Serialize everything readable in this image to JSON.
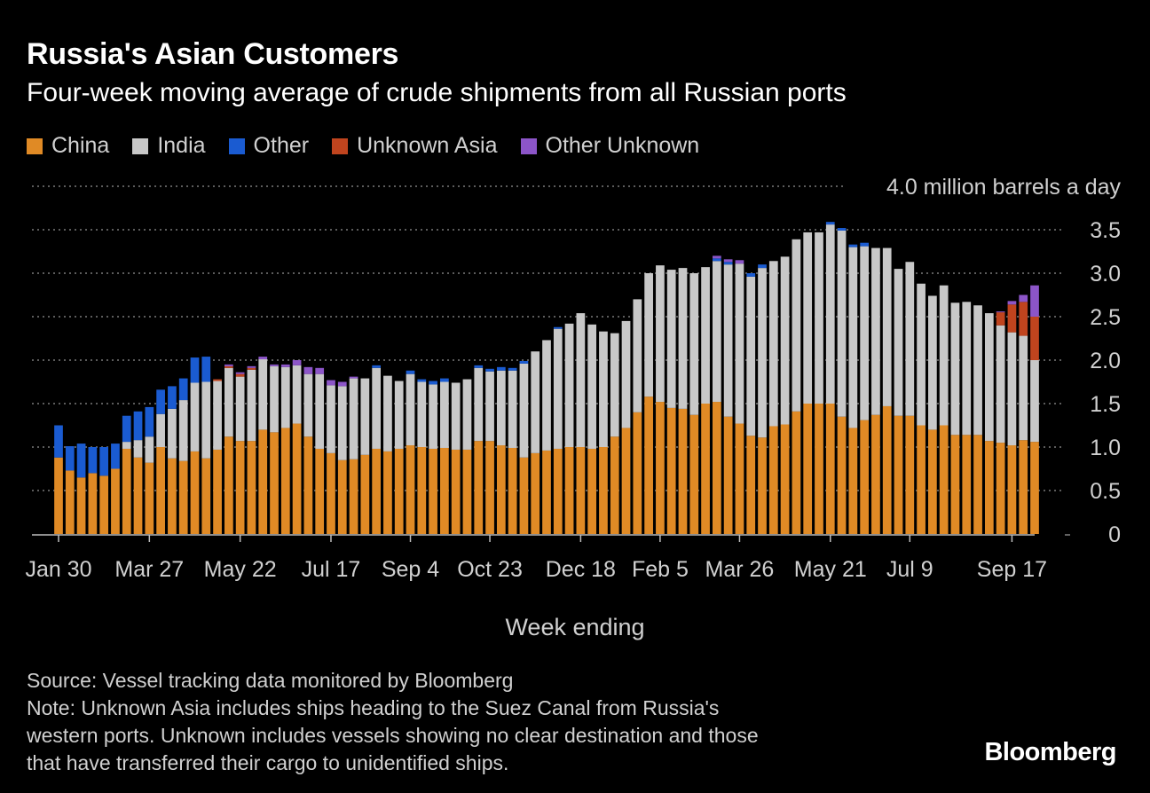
{
  "title": "Russia's Asian Customers",
  "subtitle": "Four-week moving average of crude shipments from all Russian ports",
  "legend": [
    {
      "label": "China",
      "color": "#e08a25"
    },
    {
      "label": "India",
      "color": "#c8c8c8"
    },
    {
      "label": "Other",
      "color": "#1a5bd1"
    },
    {
      "label": "Unknown Asia",
      "color": "#c0441e"
    },
    {
      "label": "Other Unknown",
      "color": "#8c55c8"
    }
  ],
  "source_line1": "Source: Vessel tracking data monitored by Bloomberg",
  "note_lines": [
    "Note: Unknown Asia includes ships heading to the Suez Canal from Russia's",
    "western ports. Unknown includes vessels showing no clear destination and those",
    "that have transferred their cargo to unidentified ships."
  ],
  "logo": "Bloomberg",
  "chart_data": {
    "type": "bar",
    "stacked": true,
    "title": "Russia's Asian Customers",
    "subtitle": "Four-week moving average of crude shipments from all Russian ports",
    "xlabel": "Week ending",
    "ylabel": "million barrels a day",
    "ylim": [
      0,
      4.0
    ],
    "yticks": [
      0,
      0.5,
      1.0,
      1.5,
      2.0,
      2.5,
      3.0,
      3.5,
      4.0
    ],
    "ytick_labels": [
      "0",
      "0.5",
      "1.0",
      "1.5",
      "2.0",
      "2.5",
      "3.0",
      "3.5",
      "4.0"
    ],
    "top_tick_suffix": "million barrels a day",
    "xtick_labels": [
      "Jan 30",
      "Mar 27",
      "May 22",
      "Jul 17",
      "Sep 4",
      "Oct 23",
      "Dec 18",
      "Feb 5",
      "Mar 26",
      "May 21",
      "Jul 9",
      "Sep 17"
    ],
    "xtick_indices": [
      0,
      8,
      16,
      24,
      31,
      38,
      46,
      53,
      60,
      68,
      75,
      84
    ],
    "series": [
      {
        "name": "China",
        "color": "#e08a25",
        "values": [
          0.88,
          0.73,
          0.65,
          0.7,
          0.67,
          0.75,
          0.98,
          0.88,
          0.82,
          1.0,
          0.87,
          0.84,
          0.95,
          0.87,
          0.97,
          1.12,
          1.07,
          1.07,
          1.2,
          1.17,
          1.22,
          1.27,
          1.12,
          0.98,
          0.93,
          0.85,
          0.86,
          0.91,
          0.98,
          0.95,
          0.98,
          1.02,
          1.0,
          0.98,
          0.99,
          0.97,
          0.97,
          1.07,
          1.07,
          1.02,
          0.99,
          0.88,
          0.93,
          0.96,
          0.98,
          1.0,
          1.0,
          0.98,
          1.0,
          1.12,
          1.22,
          1.4,
          1.58,
          1.52,
          1.45,
          1.44,
          1.37,
          1.5,
          1.52,
          1.35,
          1.27,
          1.13,
          1.11,
          1.24,
          1.26,
          1.41,
          1.5,
          1.5,
          1.5,
          1.35,
          1.22,
          1.31,
          1.37,
          1.47,
          1.36,
          1.36,
          1.25,
          1.2,
          1.25,
          1.14,
          1.14,
          1.14,
          1.07,
          1.05,
          1.02,
          1.08,
          1.06
        ]
      },
      {
        "name": "India",
        "color": "#c8c8c8",
        "values": [
          0.0,
          0.0,
          0.0,
          0.0,
          0.0,
          0.0,
          0.08,
          0.2,
          0.3,
          0.38,
          0.57,
          0.7,
          0.79,
          0.88,
          0.79,
          0.79,
          0.74,
          0.82,
          0.81,
          0.76,
          0.7,
          0.67,
          0.72,
          0.86,
          0.78,
          0.85,
          0.93,
          0.88,
          0.93,
          0.87,
          0.78,
          0.82,
          0.75,
          0.74,
          0.76,
          0.77,
          0.81,
          0.84,
          0.8,
          0.86,
          0.89,
          1.08,
          1.17,
          1.27,
          1.38,
          1.42,
          1.54,
          1.43,
          1.33,
          1.19,
          1.23,
          1.3,
          1.42,
          1.57,
          1.59,
          1.62,
          1.63,
          1.57,
          1.62,
          1.75,
          1.84,
          1.83,
          1.95,
          1.9,
          1.93,
          1.98,
          1.97,
          1.97,
          2.06,
          2.14,
          2.08,
          2.0,
          1.92,
          1.82,
          1.69,
          1.77,
          1.63,
          1.54,
          1.61,
          1.52,
          1.53,
          1.49,
          1.47,
          1.35,
          1.3,
          1.2,
          0.94
        ]
      },
      {
        "name": "Other",
        "color": "#1a5bd1",
        "values": [
          0.37,
          0.28,
          0.39,
          0.3,
          0.33,
          0.29,
          0.3,
          0.33,
          0.34,
          0.28,
          0.26,
          0.25,
          0.29,
          0.29,
          0.0,
          0.0,
          0.0,
          0.0,
          0.0,
          0.0,
          0.0,
          0.0,
          0.0,
          0.0,
          0.0,
          0.0,
          0.0,
          0.0,
          0.03,
          0.0,
          0.0,
          0.04,
          0.03,
          0.04,
          0.04,
          0.0,
          0.0,
          0.03,
          0.03,
          0.04,
          0.03,
          0.03,
          0.0,
          0.0,
          0.02,
          0.0,
          0.0,
          0.0,
          0.0,
          0.0,
          0.0,
          0.0,
          0.0,
          0.0,
          0.0,
          0.0,
          0.0,
          0.0,
          0.03,
          0.03,
          0.0,
          0.04,
          0.04,
          0.0,
          0.0,
          0.0,
          0.0,
          0.0,
          0.03,
          0.03,
          0.03,
          0.04,
          0.0,
          0.0,
          0.0,
          0.0,
          0.0,
          0.0,
          0.0,
          0.0,
          0.0,
          0.0,
          0.0,
          0.0,
          0.0,
          0.0,
          0.0
        ]
      },
      {
        "name": "Unknown Asia",
        "color": "#c0441e",
        "values": [
          0,
          0,
          0,
          0,
          0,
          0,
          0,
          0,
          0,
          0,
          0,
          0,
          0,
          0,
          0.02,
          0.02,
          0.03,
          0.02,
          0,
          0,
          0,
          0,
          0,
          0,
          0,
          0,
          0,
          0,
          0,
          0,
          0,
          0,
          0,
          0,
          0,
          0,
          0,
          0,
          0,
          0,
          0,
          0,
          0,
          0,
          0,
          0,
          0,
          0,
          0,
          0,
          0,
          0,
          0,
          0,
          0,
          0,
          0,
          0,
          0,
          0,
          0,
          0,
          0,
          0,
          0,
          0,
          0,
          0,
          0,
          0,
          0,
          0,
          0,
          0,
          0,
          0,
          0,
          0,
          0,
          0,
          0,
          0,
          0,
          0.15,
          0.32,
          0.39,
          0.5
        ]
      },
      {
        "name": "Other Unknown",
        "color": "#8c55c8",
        "values": [
          0,
          0,
          0,
          0,
          0,
          0,
          0,
          0,
          0,
          0,
          0,
          0,
          0,
          0,
          0,
          0.02,
          0.02,
          0.02,
          0.03,
          0.02,
          0.03,
          0.06,
          0.08,
          0.07,
          0.06,
          0.05,
          0.02,
          0.0,
          0.0,
          0,
          0,
          0,
          0,
          0,
          0,
          0,
          0,
          0,
          0,
          0,
          0,
          0,
          0,
          0,
          0,
          0,
          0,
          0,
          0,
          0,
          0,
          0,
          0,
          0,
          0,
          0,
          0,
          0,
          0.03,
          0.03,
          0.04,
          0,
          0,
          0,
          0,
          0,
          0,
          0,
          0,
          0,
          0,
          0,
          0,
          0,
          0,
          0,
          0,
          0,
          0,
          0,
          0,
          0,
          0,
          0.01,
          0.04,
          0.08,
          0.36
        ]
      }
    ]
  }
}
